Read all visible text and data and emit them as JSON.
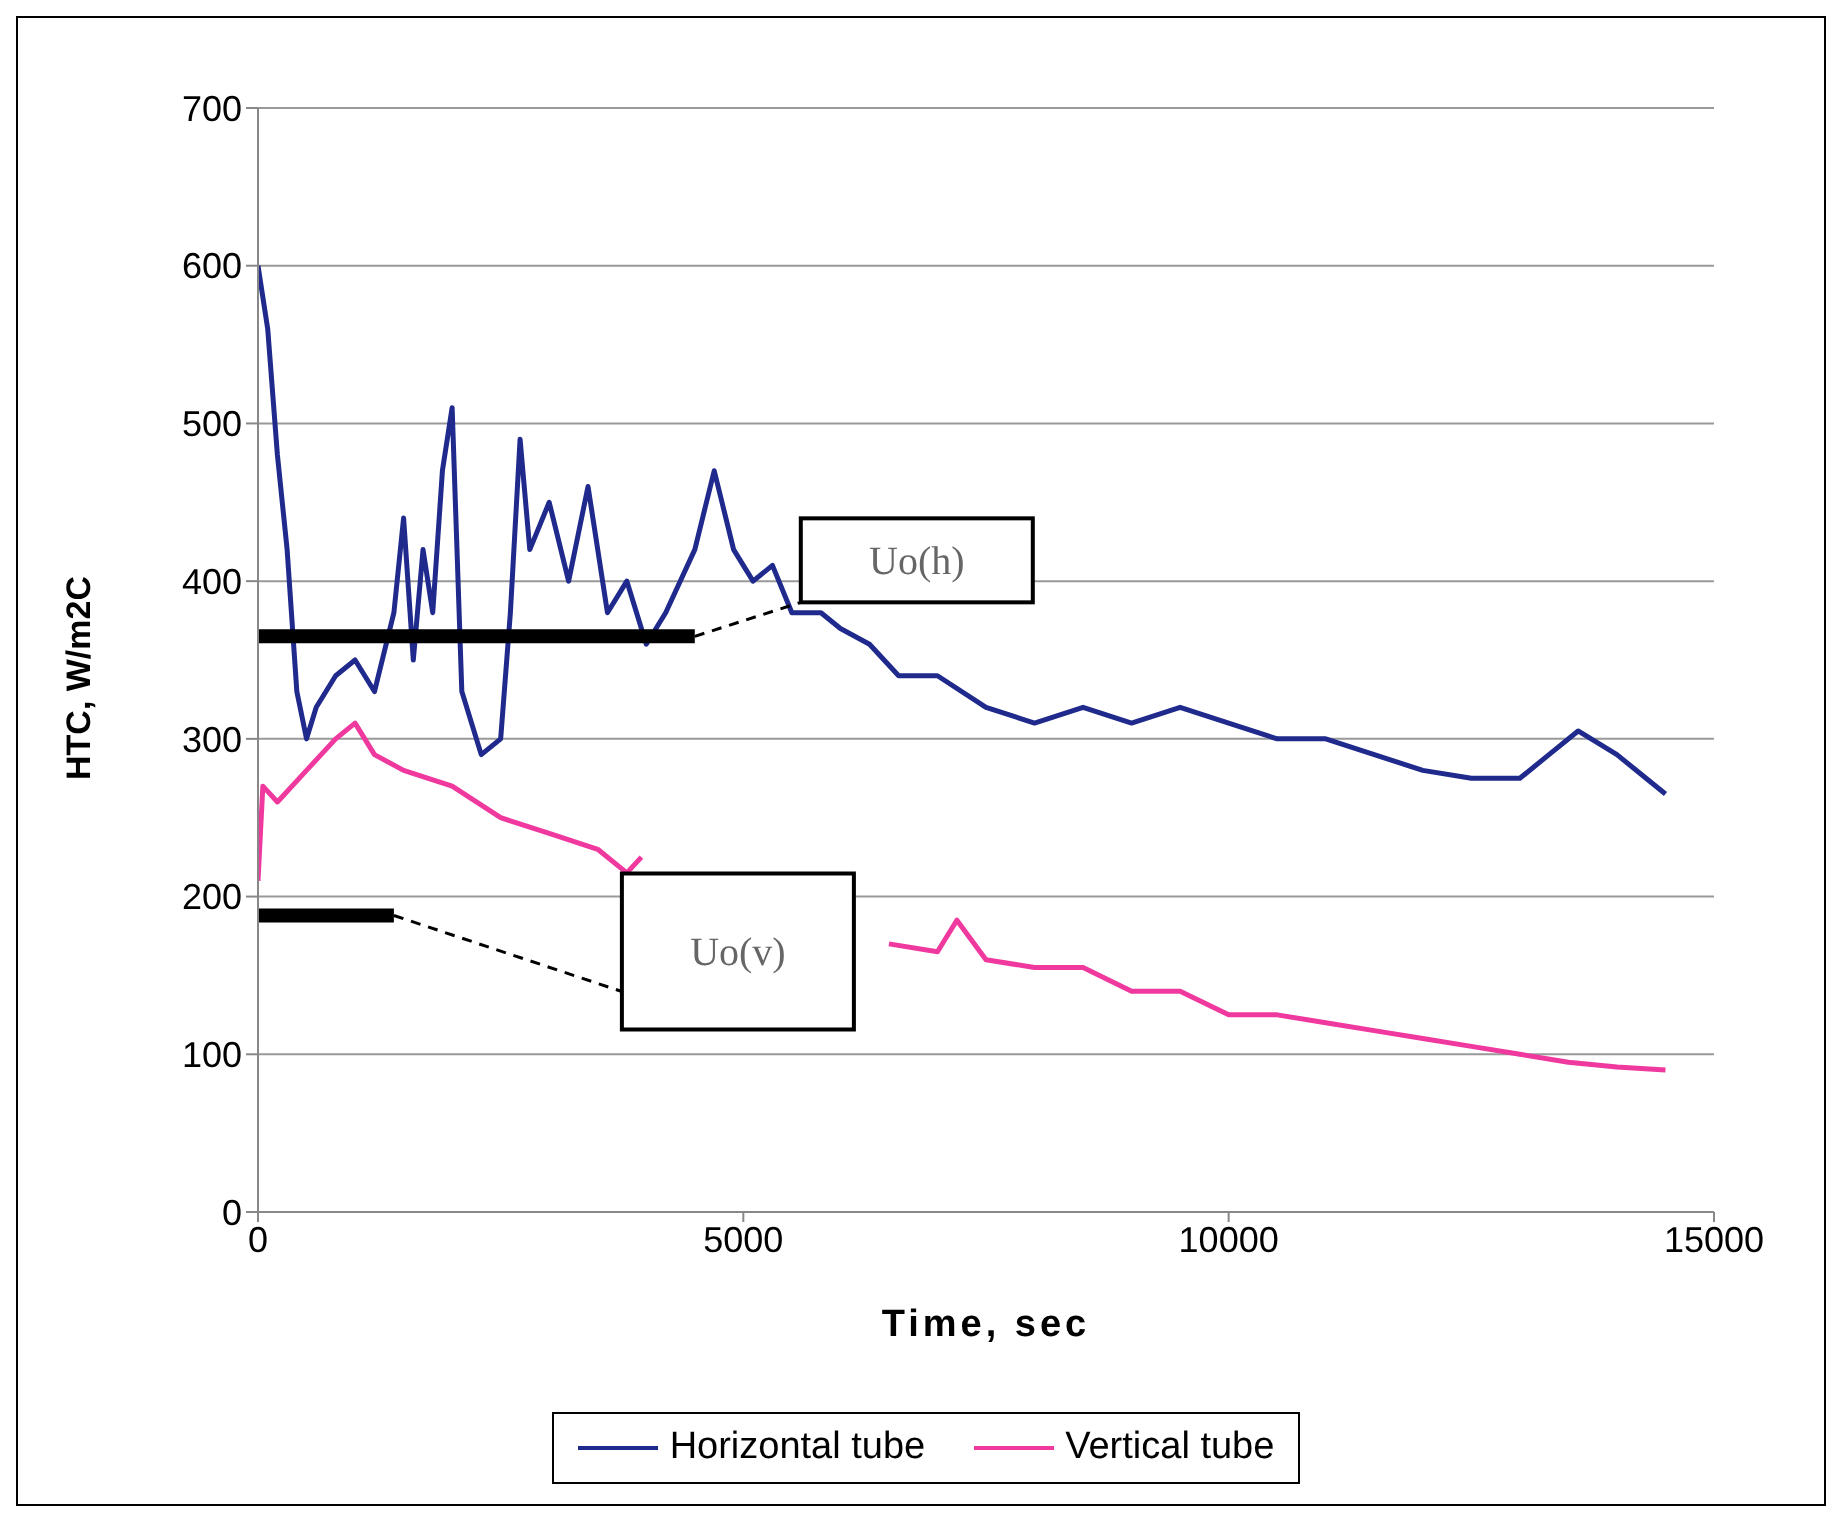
{
  "chart_data": {
    "type": "line",
    "xlabel": "Time, sec",
    "ylabel": "HTC, W/m2C",
    "xlim": [
      0,
      15000
    ],
    "xticks": [
      0,
      5000,
      10000,
      15000
    ],
    "ylim": [
      0,
      700
    ],
    "yticks": [
      0,
      100,
      200,
      300,
      400,
      500,
      600,
      700
    ],
    "grid": "y",
    "legend": "bottom",
    "marker": "none",
    "line_style": "solid",
    "series": [
      {
        "name": "Horizontal tube",
        "color": "#1f2a8c",
        "x": [
          0,
          100,
          200,
          300,
          400,
          500,
          600,
          800,
          1000,
          1200,
          1400,
          1500,
          1600,
          1700,
          1800,
          1900,
          2000,
          2100,
          2300,
          2500,
          2600,
          2700,
          2800,
          3000,
          3200,
          3400,
          3600,
          3800,
          4000,
          4200,
          4500,
          4700,
          4900,
          5100,
          5300,
          5500,
          5800,
          6000,
          6300,
          6600,
          7000,
          7500,
          8000,
          8500,
          9000,
          9500,
          10000,
          10500,
          11000,
          11500,
          12000,
          12500,
          13000,
          13300,
          13600,
          14000,
          14300,
          14500
        ],
        "values": [
          600,
          560,
          480,
          420,
          330,
          300,
          320,
          340,
          350,
          330,
          380,
          440,
          350,
          420,
          380,
          470,
          510,
          330,
          290,
          300,
          380,
          490,
          420,
          450,
          400,
          460,
          380,
          400,
          360,
          380,
          420,
          470,
          420,
          400,
          410,
          380,
          380,
          370,
          360,
          340,
          340,
          320,
          310,
          320,
          310,
          320,
          310,
          300,
          300,
          290,
          280,
          275,
          275,
          290,
          305,
          290,
          275,
          265
        ]
      },
      {
        "name": "Vertical tube",
        "color": "#f0399e",
        "x": [
          0,
          50,
          200,
          500,
          800,
          1000,
          1200,
          1500,
          2000,
          2500,
          3000,
          3500,
          3800,
          3950,
          4300,
          5000,
          5500,
          6000,
          6500,
          7000,
          7200,
          7500,
          8000,
          8500,
          9000,
          9500,
          10000,
          10500,
          11000,
          11500,
          12000,
          12500,
          13000,
          13500,
          14000,
          14500
        ],
        "values": [
          210,
          270,
          260,
          280,
          300,
          310,
          290,
          280,
          270,
          250,
          240,
          230,
          215,
          225,
          null,
          null,
          null,
          null,
          170,
          165,
          185,
          160,
          155,
          155,
          140,
          140,
          125,
          125,
          120,
          115,
          110,
          105,
          100,
          95,
          92,
          90
        ]
      },
      {
        "type": "line",
        "color": "#000000",
        "x": [
          0,
          4500
        ],
        "values": [
          365,
          365
        ]
      },
      {
        "type": "line",
        "color": "#000000",
        "x": [
          0,
          1400
        ],
        "values": [
          188,
          188
        ]
      }
    ],
    "annotations": [
      "Uo(h)",
      "Uo(v)"
    ]
  }
}
